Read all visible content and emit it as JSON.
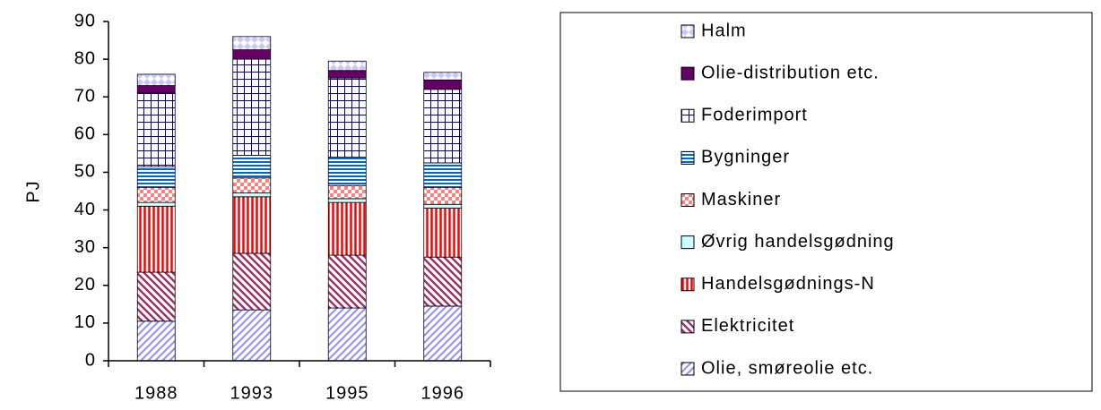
{
  "chart_data": {
    "type": "stacked_bar",
    "y_label": "PJ",
    "categories": [
      "1988",
      "1993",
      "1995",
      "1996"
    ],
    "ylim": [
      0,
      90
    ],
    "yticks": [
      0,
      10,
      20,
      30,
      40,
      50,
      60,
      70,
      80,
      90
    ],
    "series": [
      {
        "name": "Olie, smøreolie etc.",
        "color": "#8c8cff",
        "pattern": "diag-up",
        "values": [
          10.5,
          13.5,
          14,
          14.5
        ]
      },
      {
        "name": "Elektricitet",
        "color": "#993366",
        "pattern": "diag-down",
        "values": [
          13,
          15,
          14,
          13
        ]
      },
      {
        "name": "Handelsgødnings-N",
        "color": "#ff0000",
        "pattern": "vertical",
        "values": [
          17.5,
          15,
          14,
          13
        ]
      },
      {
        "name": "Øvrig handelsgødning",
        "color": "#ccffff",
        "pattern": "solid",
        "values": [
          1,
          1,
          1,
          1
        ]
      },
      {
        "name": "Maskiner",
        "color": "#ff8080",
        "pattern": "checker",
        "values": [
          4,
          4,
          3.5,
          4.5
        ]
      },
      {
        "name": "Bygninger",
        "color": "#0066cc",
        "pattern": "horizontal",
        "values": [
          5.5,
          6,
          7.5,
          6.5
        ]
      },
      {
        "name": "Foderimport",
        "color": "#000080",
        "pattern": "grid",
        "values": [
          19.5,
          25.5,
          21,
          19.5
        ]
      },
      {
        "name": "Olie-distribution etc.",
        "color": "#660066",
        "pattern": "solid",
        "values": [
          2,
          2.5,
          2,
          2.5
        ]
      },
      {
        "name": "Halm",
        "color": "#c8c8ff",
        "pattern": "diamond",
        "values": [
          3,
          3.5,
          2.5,
          2
        ]
      }
    ]
  }
}
